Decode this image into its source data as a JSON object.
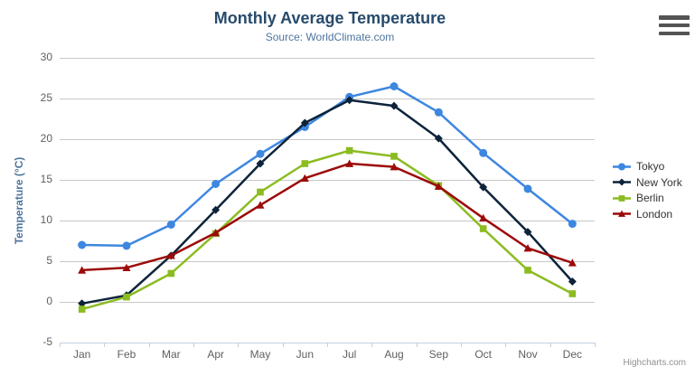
{
  "chart_data": {
    "type": "line",
    "title": "Monthly Average Temperature",
    "subtitle": "Source: WorldClimate.com",
    "xlabel": "",
    "ylabel": "Temperature (°C)",
    "categories": [
      "Jan",
      "Feb",
      "Mar",
      "Apr",
      "May",
      "Jun",
      "Jul",
      "Aug",
      "Sep",
      "Oct",
      "Nov",
      "Dec"
    ],
    "yticks": [
      -5,
      0,
      5,
      10,
      15,
      20,
      25,
      30
    ],
    "ylim": [
      -5,
      30
    ],
    "grid": true,
    "legend_position": "right",
    "series": [
      {
        "name": "Tokyo",
        "marker": "circle",
        "color": "#3d87e0",
        "values": [
          7.0,
          6.9,
          9.5,
          14.5,
          18.2,
          21.5,
          25.2,
          26.5,
          23.3,
          18.3,
          13.9,
          9.6
        ]
      },
      {
        "name": "New York",
        "marker": "diamond",
        "color": "#0d233a",
        "values": [
          -0.2,
          0.8,
          5.7,
          11.3,
          17.0,
          22.0,
          24.8,
          24.1,
          20.1,
          14.1,
          8.6,
          2.5
        ]
      },
      {
        "name": "Berlin",
        "marker": "square",
        "color": "#8bbc21",
        "values": [
          -0.9,
          0.6,
          3.5,
          8.4,
          13.5,
          17.0,
          18.6,
          17.9,
          14.3,
          9.0,
          3.9,
          1.0
        ]
      },
      {
        "name": "London",
        "marker": "triangle",
        "color": "#9c0a0a",
        "values": [
          3.9,
          4.2,
          5.7,
          8.5,
          11.9,
          15.2,
          17.0,
          16.6,
          14.2,
          10.3,
          6.6,
          4.8
        ]
      }
    ],
    "credits": "Highcharts.com",
    "colors": {
      "title": "#274b6d",
      "subtitle": "#4d759e",
      "axis_title": "#4d759e",
      "tick_label": "#606060",
      "legend_text": "#333333",
      "grid": "#c8c8c8",
      "axis_line": "#c0d0e0",
      "credits": "#909090",
      "menu_icon": "#545454",
      "background": "#ffffff"
    }
  },
  "icons": {
    "export_menu": "hamburger-menu-icon"
  }
}
